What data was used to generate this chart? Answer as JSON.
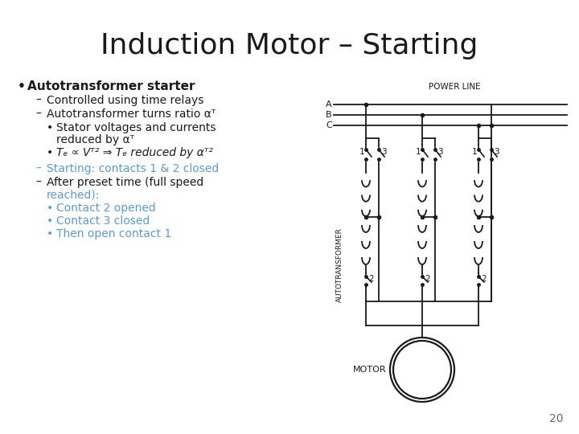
{
  "title": "Induction Motor – Starting",
  "title_fontsize": 26,
  "title_color": "#1a1a1a",
  "background_color": "#ffffff",
  "page_number": "20",
  "bullet_main": "Autotransformer starter",
  "blue_color": "#5b9bd5",
  "black_color": "#1a1a1a",
  "line_color": "#1a1a1a"
}
